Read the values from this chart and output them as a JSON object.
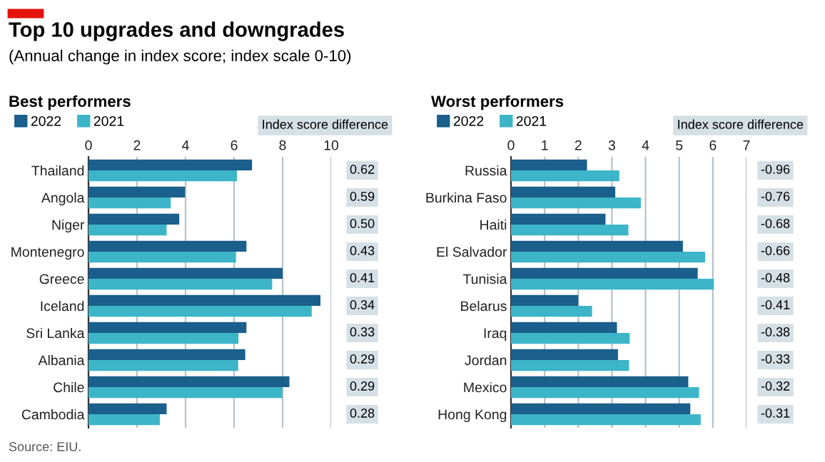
{
  "chart_data": [
    {
      "type": "bar",
      "orientation": "horizontal",
      "title": "Top 10 upgrades and downgrades",
      "subtitle": "(Annual change in index score; index scale 0-10)",
      "legend_title": "Best performers",
      "categories": [
        "Thailand",
        "Angola",
        "Niger",
        "Montenegro",
        "Greece",
        "Iceland",
        "Sri Lanka",
        "Albania",
        "Chile",
        "Cambodia"
      ],
      "series": [
        {
          "name": "2022",
          "color": "#1b5f8c",
          "values": [
            6.74,
            3.98,
            3.74,
            6.51,
            8.0,
            9.56,
            6.51,
            6.46,
            8.28,
            3.22
          ]
        },
        {
          "name": "2021",
          "color": "#3db5c8",
          "values": [
            6.12,
            3.39,
            3.22,
            6.08,
            7.57,
            9.2,
            6.18,
            6.17,
            7.99,
            2.94
          ]
        }
      ],
      "xlim": [
        0,
        10
      ],
      "xticks": [
        0,
        2,
        4,
        6,
        8,
        10
      ],
      "grid": "x",
      "legend": "top left",
      "annotations": [
        "Index score difference",
        "0.62",
        "0.59",
        "0.50",
        "0.43",
        "0.41",
        "0.34",
        "0.33",
        "0.29",
        "0.29",
        "0.28",
        "Source: EIU."
      ]
    },
    {
      "type": "bar",
      "orientation": "horizontal",
      "legend_title": "Worst performers",
      "categories": [
        "Russia",
        "Burkina Faso",
        "Haiti",
        "El Salvador",
        "Tunisia",
        "Belarus",
        "Iraq",
        "Jordan",
        "Mexico",
        "Hong Kong"
      ],
      "series": [
        {
          "name": "2022",
          "color": "#1b5f8c",
          "values": [
            2.26,
            3.1,
            2.81,
            5.11,
            5.55,
            2.0,
            3.15,
            3.18,
            5.27,
            5.33
          ]
        },
        {
          "name": "2021",
          "color": "#3db5c8",
          "values": [
            3.22,
            3.86,
            3.49,
            5.77,
            6.03,
            2.41,
            3.53,
            3.51,
            5.59,
            5.64
          ]
        }
      ],
      "xlim": [
        0,
        7
      ],
      "xticks": [
        0,
        1,
        2,
        3,
        4,
        5,
        6,
        7
      ],
      "grid": "x",
      "legend": "top left",
      "annotations": [
        "Index score difference",
        "-0.96",
        "-0.76",
        "-0.68",
        "-0.66",
        "-0.48",
        "-0.41",
        "-0.38",
        "-0.33",
        "-0.32",
        "-0.31"
      ]
    }
  ]
}
